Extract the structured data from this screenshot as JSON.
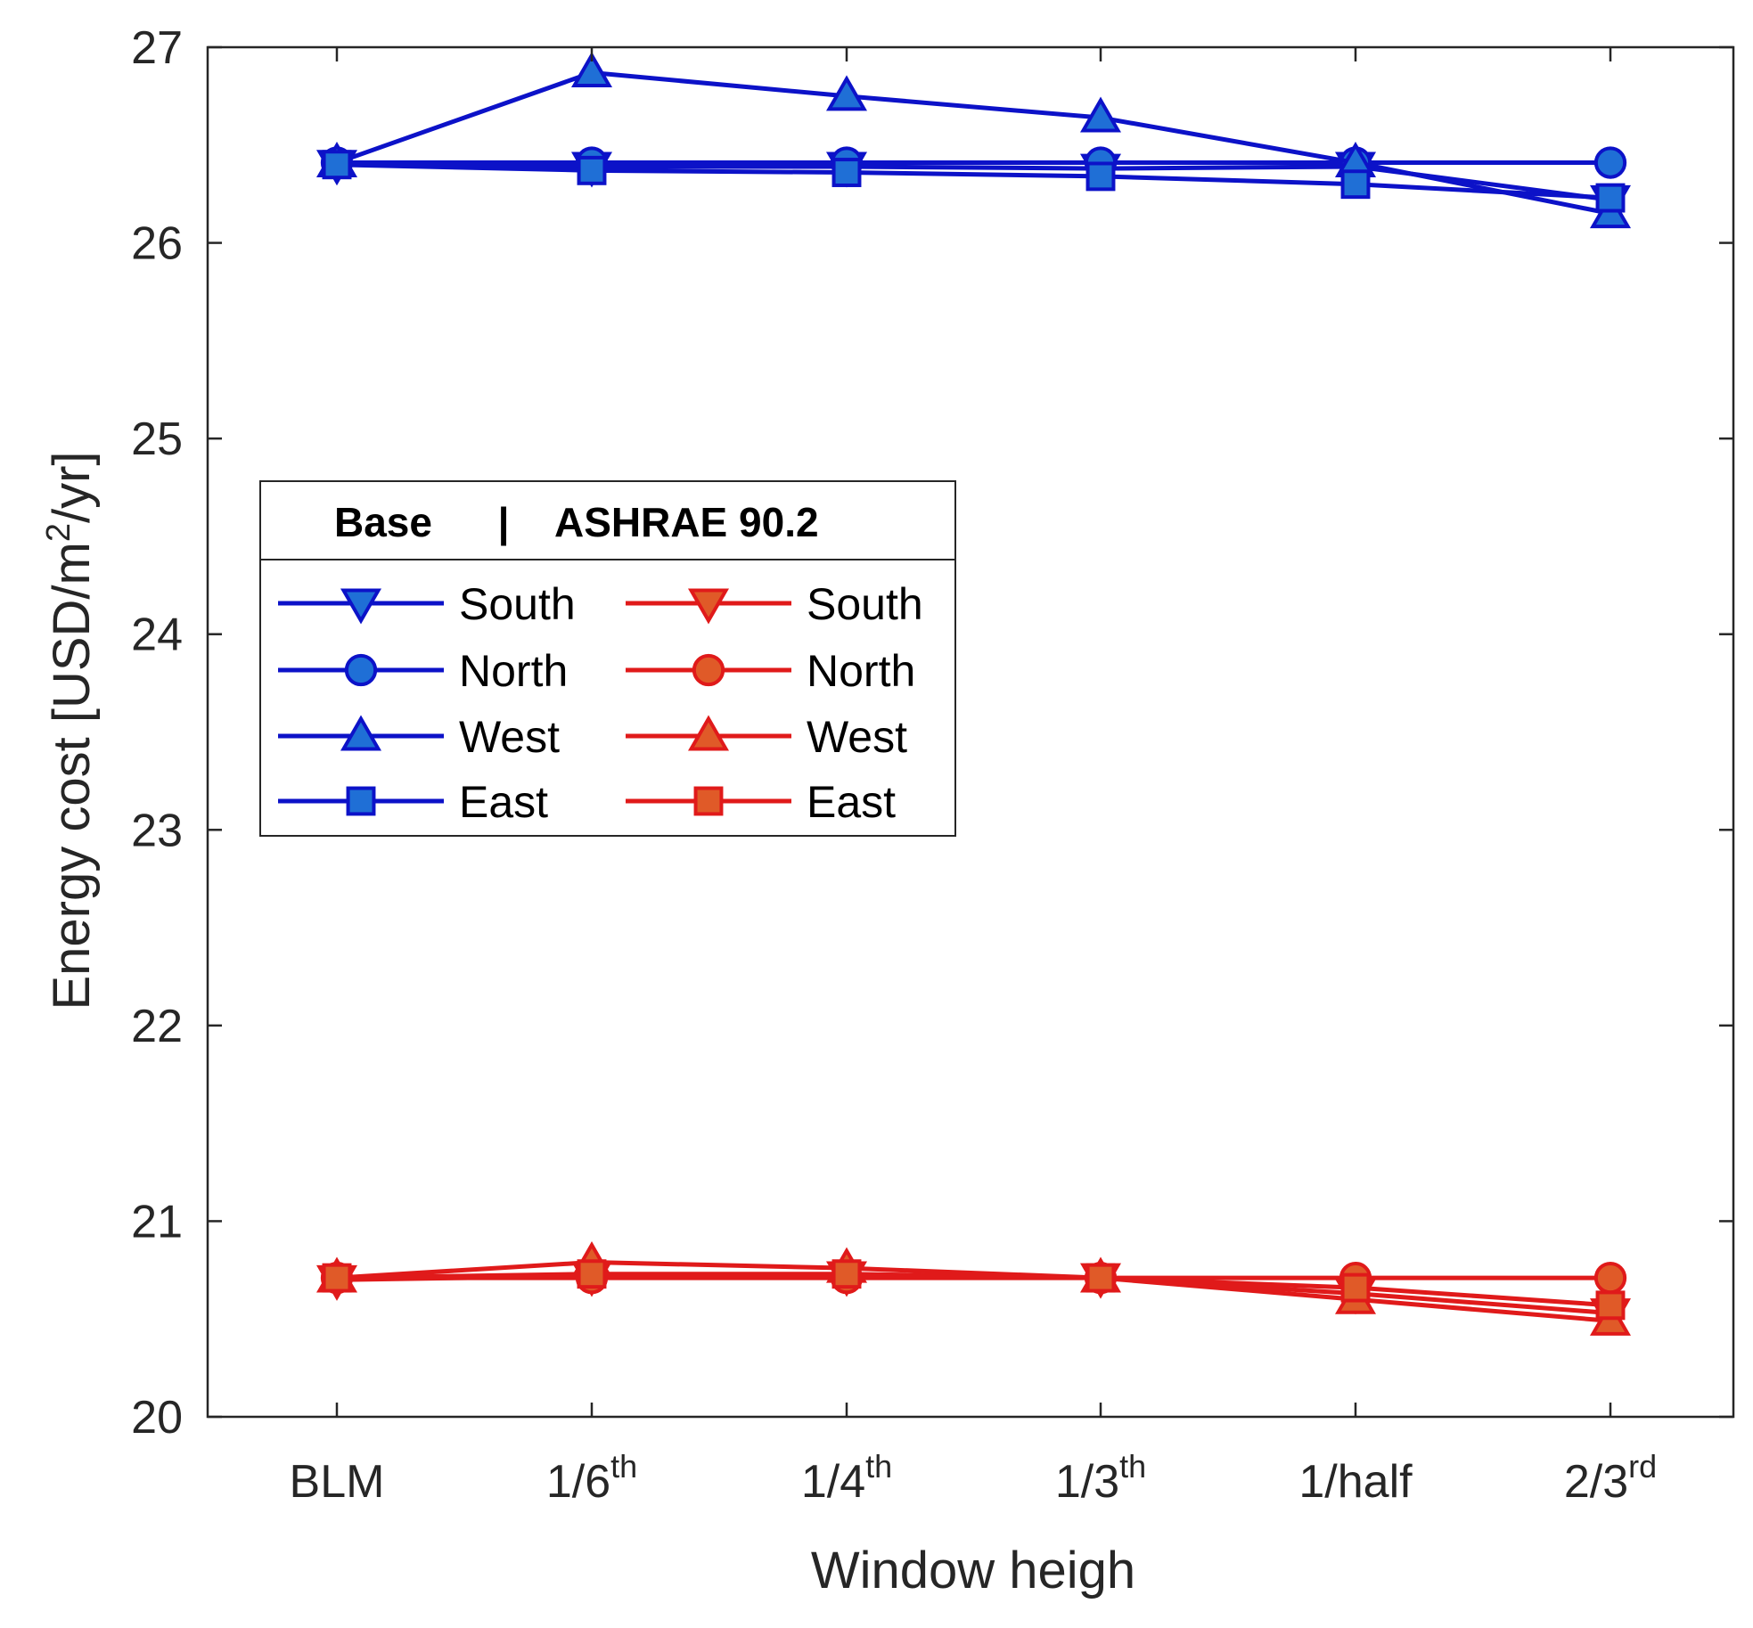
{
  "chart_data": {
    "type": "line",
    "title": "",
    "xlabel": "Window heigh",
    "ylabel": {
      "pre": "Energy cost [USD/m",
      "sup": "2",
      "post": "/yr]"
    },
    "ylim": [
      20,
      27
    ],
    "yticks": [
      20,
      21,
      22,
      23,
      24,
      25,
      26,
      27
    ],
    "categories": [
      {
        "base": "BLM",
        "sup": ""
      },
      {
        "base": "1/6",
        "sup": "th"
      },
      {
        "base": "1/4",
        "sup": "th"
      },
      {
        "base": "1/3",
        "sup": "th"
      },
      {
        "base": "1/half",
        "sup": ""
      },
      {
        "base": "2/3",
        "sup": "rd"
      }
    ],
    "grid": false,
    "legend": {
      "position": "center-left",
      "title": {
        "left": "Base",
        "divider": "|",
        "right": "ASHRAE 90.2"
      }
    },
    "series": [
      {
        "name": "South",
        "group": "Base",
        "marker": "triangle-down",
        "color": "#0c12c8",
        "fill": "#1f6fd6",
        "values": [
          26.4,
          26.39,
          26.39,
          26.38,
          26.39,
          26.22
        ]
      },
      {
        "name": "North",
        "group": "Base",
        "marker": "circle",
        "color": "#0c12c8",
        "fill": "#1f6fd6",
        "values": [
          26.41,
          26.41,
          26.41,
          26.41,
          26.41,
          26.41
        ]
      },
      {
        "name": "West",
        "group": "Base",
        "marker": "triangle-up",
        "color": "#0c12c8",
        "fill": "#1f6fd6",
        "values": [
          26.41,
          26.87,
          26.75,
          26.64,
          26.41,
          26.15
        ]
      },
      {
        "name": "East",
        "group": "Base",
        "marker": "square",
        "color": "#0c12c8",
        "fill": "#1f6fd6",
        "values": [
          26.4,
          26.37,
          26.36,
          26.34,
          26.3,
          26.23
        ]
      },
      {
        "name": "South",
        "group": "ASHRAE 90.2",
        "marker": "triangle-down",
        "color": "#e01a1a",
        "fill": "#e05a28",
        "values": [
          20.7,
          20.72,
          20.72,
          20.71,
          20.63,
          20.53
        ]
      },
      {
        "name": "North",
        "group": "ASHRAE 90.2",
        "marker": "circle",
        "color": "#e01a1a",
        "fill": "#e05a28",
        "values": [
          20.71,
          20.71,
          20.71,
          20.71,
          20.71,
          20.71
        ]
      },
      {
        "name": "West",
        "group": "ASHRAE 90.2",
        "marker": "triangle-up",
        "color": "#e01a1a",
        "fill": "#e05a28",
        "values": [
          20.71,
          20.79,
          20.76,
          20.71,
          20.6,
          20.49
        ]
      },
      {
        "name": "East",
        "group": "ASHRAE 90.2",
        "marker": "square",
        "color": "#e01a1a",
        "fill": "#e05a28",
        "values": [
          20.71,
          20.73,
          20.73,
          20.71,
          20.66,
          20.57
        ]
      }
    ]
  }
}
